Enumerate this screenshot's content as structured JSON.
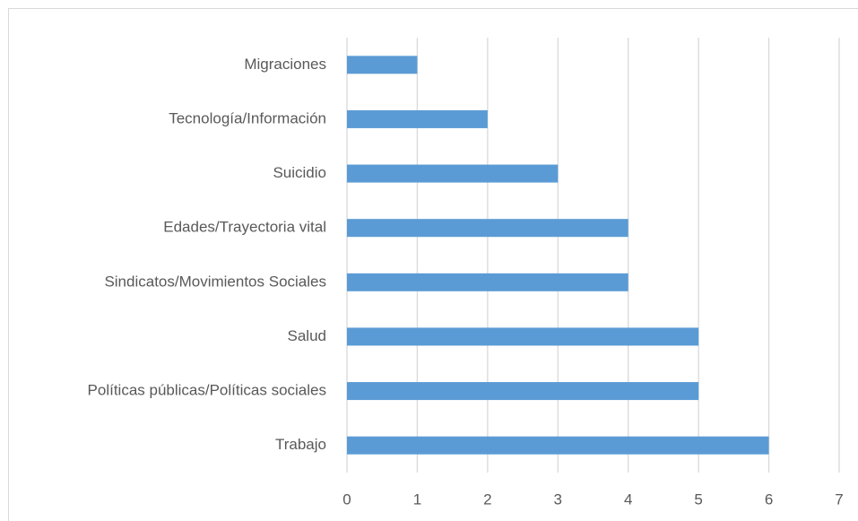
{
  "chart_data": {
    "type": "bar",
    "orientation": "horizontal",
    "categories": [
      "Migraciones",
      "Tecnología/Información",
      "Suicidio",
      "Edades/Trayectoria vital",
      "Sindicatos/Movimientos Sociales",
      "Salud",
      "Políticas públicas/Políticas sociales",
      "Trabajo"
    ],
    "values": [
      1,
      2,
      3,
      4,
      4,
      5,
      5,
      6
    ],
    "color": "#5b9bd5",
    "xlim": [
      0,
      7
    ],
    "xticks": [
      0,
      1,
      2,
      3,
      4,
      5,
      6,
      7
    ],
    "grid": true
  }
}
